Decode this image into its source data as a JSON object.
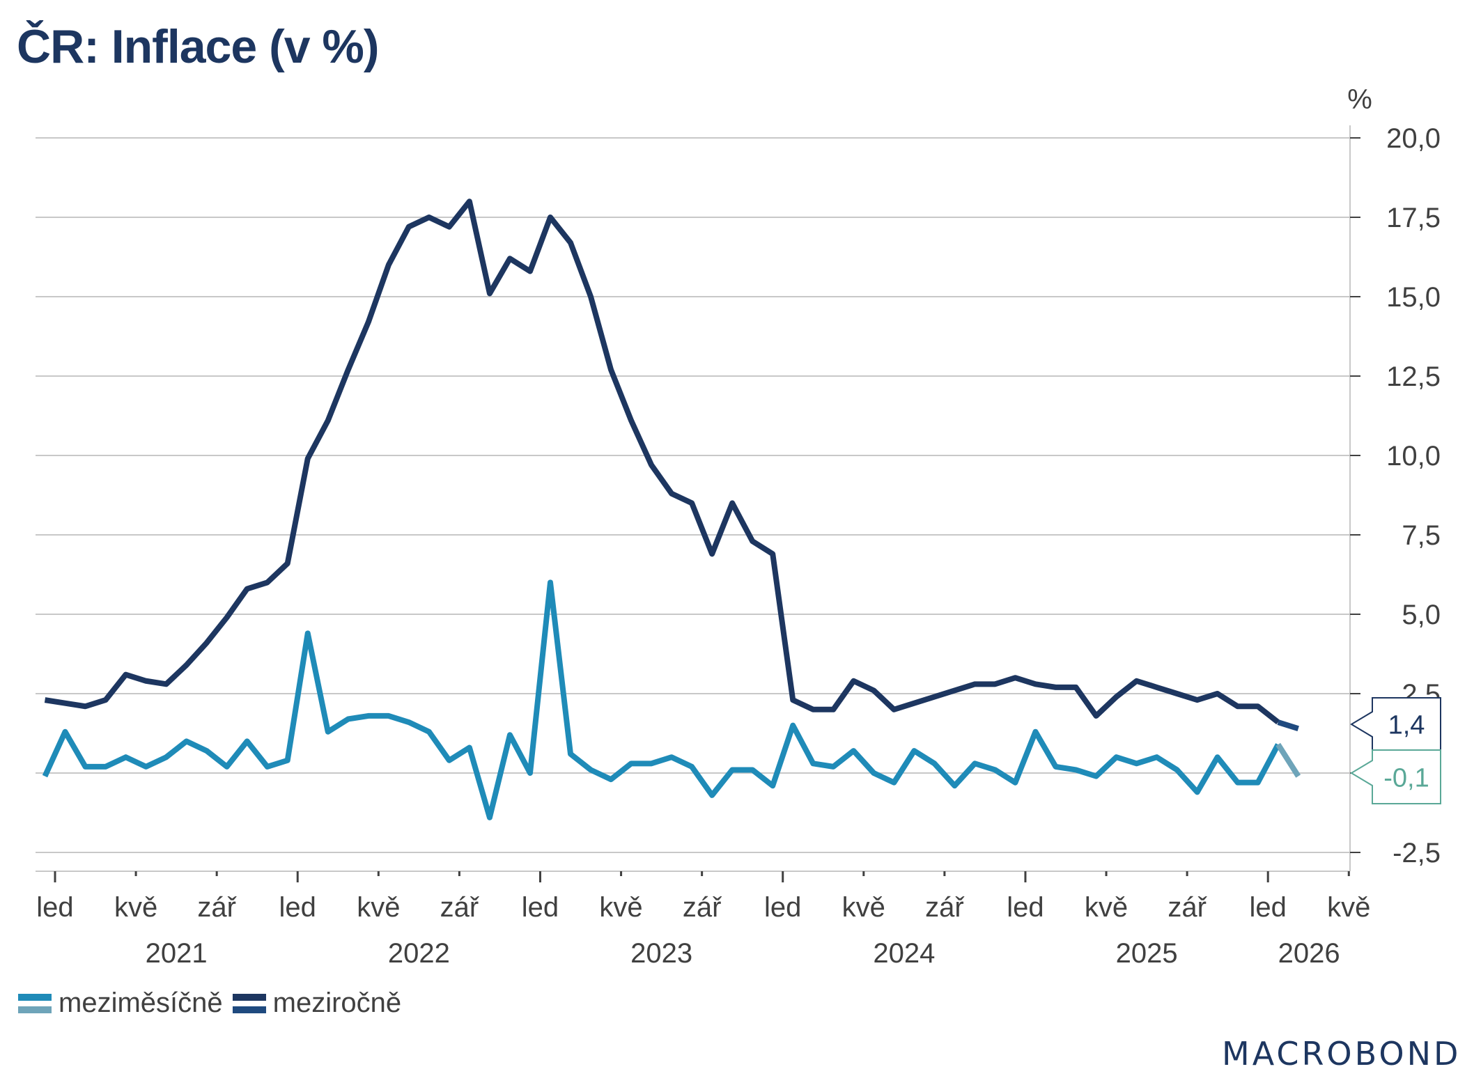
{
  "title": "ČR: Inflace (v %)",
  "logo": "MACROBOND",
  "chart_data": {
    "type": "line",
    "title": "ČR: Inflace (v %)",
    "ylabel": "%",
    "xlabel": "",
    "ylim": [
      -3.5,
      20.5
    ],
    "yticks": [
      -2.5,
      0,
      2.5,
      5,
      7.5,
      10,
      12.5,
      15,
      17.5,
      20
    ],
    "ytick_labels": [
      "-2,5",
      "",
      "2,5",
      "5,0",
      "7,5",
      "10,0",
      "12,5",
      "15,0",
      "17,5",
      "20,0"
    ],
    "grid": true,
    "y_axis_side": "right",
    "x_start": "2020-12",
    "x_end": "2026-02",
    "xticks": [
      {
        "month": "2021-01",
        "label": "led",
        "major": true
      },
      {
        "month": "2021-05",
        "label": "kvě",
        "major": false
      },
      {
        "month": "2021-09",
        "label": "zář",
        "major": false
      },
      {
        "month": "2022-01",
        "label": "led",
        "major": true
      },
      {
        "month": "2022-05",
        "label": "kvě",
        "major": false
      },
      {
        "month": "2022-09",
        "label": "zář",
        "major": false
      },
      {
        "month": "2023-01",
        "label": "led",
        "major": true
      },
      {
        "month": "2023-05",
        "label": "kvě",
        "major": false
      },
      {
        "month": "2023-09",
        "label": "zář",
        "major": false
      },
      {
        "month": "2024-01",
        "label": "led",
        "major": true
      },
      {
        "month": "2024-05",
        "label": "kvě",
        "major": false
      },
      {
        "month": "2024-09",
        "label": "zář",
        "major": false
      },
      {
        "month": "2025-01",
        "label": "led",
        "major": true
      },
      {
        "month": "2025-05",
        "label": "kvě",
        "major": false
      },
      {
        "month": "2025-09",
        "label": "zář",
        "major": false
      },
      {
        "month": "2026-01",
        "label": "led",
        "major": true
      },
      {
        "month": "2026-05",
        "label": "kvě",
        "major": false
      }
    ],
    "year_labels": [
      "2021",
      "2022",
      "2023",
      "2024",
      "2025",
      "2026"
    ],
    "legend_position": "bottom-left",
    "series": [
      {
        "name": "meziměsíčně",
        "color": "#1f8bb8",
        "latest_color": "#6ea4b9",
        "last_value_label": "-0,1",
        "label_color": "#5aa897",
        "values": [
          -0.1,
          1.3,
          0.2,
          0.2,
          0.5,
          0.2,
          0.5,
          1.0,
          0.7,
          0.2,
          1.0,
          0.2,
          0.4,
          4.4,
          1.3,
          1.7,
          1.8,
          1.8,
          1.6,
          1.3,
          0.4,
          0.8,
          -1.4,
          1.2,
          0.0,
          6.0,
          0.6,
          0.1,
          -0.2,
          0.3,
          0.3,
          0.5,
          0.2,
          -0.7,
          0.1,
          0.1,
          -0.4,
          1.5,
          0.3,
          0.2,
          0.7,
          0.0,
          -0.3,
          0.7,
          0.3,
          -0.4,
          0.3,
          0.1,
          -0.3,
          1.3,
          0.2,
          0.1,
          -0.1,
          0.5,
          0.3,
          0.5,
          0.1,
          -0.6,
          0.5,
          -0.3,
          -0.3,
          0.9,
          -0.1
        ]
      },
      {
        "name": "meziročně",
        "color": "#1d3660",
        "latest_color": "#1f4a7f",
        "last_value_label": "1,4",
        "label_color": "#1d3660",
        "values": [
          2.3,
          2.2,
          2.1,
          2.3,
          3.1,
          2.9,
          2.8,
          3.4,
          4.1,
          4.9,
          5.8,
          6.0,
          6.6,
          9.9,
          11.1,
          12.7,
          14.2,
          16.0,
          17.2,
          17.5,
          17.2,
          18.0,
          15.1,
          16.2,
          15.8,
          17.5,
          16.7,
          15.0,
          12.7,
          11.1,
          9.7,
          8.8,
          8.5,
          6.9,
          8.5,
          7.3,
          6.9,
          2.3,
          2.0,
          2.0,
          2.9,
          2.6,
          2.0,
          2.2,
          2.4,
          2.6,
          2.8,
          2.8,
          3.0,
          2.8,
          2.7,
          2.7,
          1.8,
          2.4,
          2.9,
          2.7,
          2.5,
          2.3,
          2.5,
          2.1,
          2.1,
          1.6,
          1.4
        ]
      }
    ]
  }
}
